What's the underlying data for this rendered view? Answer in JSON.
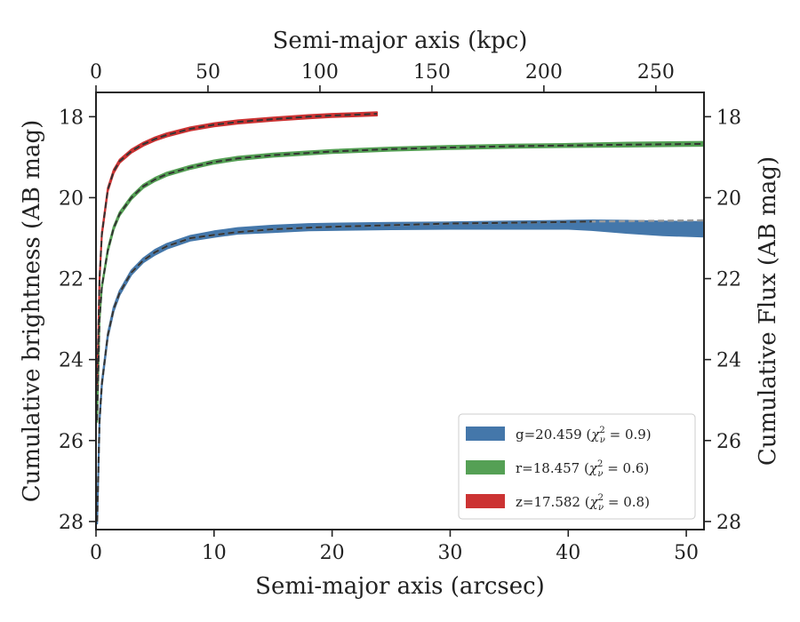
{
  "chart_data": {
    "type": "line",
    "xlabel": "Semi-major axis (arcsec)",
    "xlabel_top": "Semi-major axis (kpc)",
    "ylabel": "Cumulative brightness (AB mag)",
    "ylabel_right": "Cumulative Flux (AB mag)",
    "xlim": [
      0,
      51.5
    ],
    "xlim_top_kpc": [
      0,
      271.5
    ],
    "ylim": [
      28.2,
      17.4
    ],
    "x_ticks": [
      0,
      10,
      20,
      30,
      40,
      50
    ],
    "x_ticks_top": [
      0,
      50,
      100,
      150,
      200,
      250
    ],
    "y_ticks": [
      18,
      20,
      22,
      24,
      26,
      28
    ],
    "legend_position": "lower-right",
    "series": [
      {
        "name": "g=20.459 (χ²_ν = 0.9)",
        "label_main": "g=20.459 (",
        "label_sub": "ν",
        "label_tail": " = 0.9)",
        "color": "#4477aa",
        "x": [
          0.1,
          0.3,
          0.5,
          1,
          1.5,
          2,
          3,
          4,
          5,
          6,
          7,
          8,
          10,
          12,
          15,
          18,
          20,
          25,
          30,
          35,
          40,
          42,
          45,
          48,
          51.5
        ],
        "y": [
          28.0,
          25.5,
          24.6,
          23.4,
          22.75,
          22.35,
          21.85,
          21.55,
          21.35,
          21.2,
          21.1,
          21.0,
          20.9,
          20.82,
          20.77,
          20.73,
          20.72,
          20.7,
          20.69,
          20.68,
          20.67,
          20.68,
          20.72,
          20.76,
          20.78
        ],
        "band_halfwidth": [
          0.05,
          0.05,
          0.05,
          0.05,
          0.05,
          0.05,
          0.05,
          0.05,
          0.06,
          0.06,
          0.06,
          0.06,
          0.07,
          0.07,
          0.08,
          0.08,
          0.08,
          0.08,
          0.08,
          0.09,
          0.1,
          0.12,
          0.15,
          0.17,
          0.18
        ],
        "model_y": [
          28.0,
          25.5,
          24.6,
          23.4,
          22.75,
          22.35,
          21.85,
          21.55,
          21.35,
          21.2,
          21.1,
          21.0,
          20.92,
          20.85,
          20.78,
          20.74,
          20.72,
          20.68,
          20.64,
          20.62,
          20.6,
          20.59,
          20.58,
          20.57,
          20.56
        ]
      },
      {
        "name": "r=18.457 (χ²_ν = 0.6)",
        "label_main": "r=18.457 (",
        "label_sub": "ν",
        "label_tail": " = 0.6)",
        "color": "#55a055",
        "x": [
          0.1,
          0.3,
          0.5,
          1,
          1.5,
          2,
          3,
          4,
          5,
          6,
          8,
          10,
          12,
          15,
          20,
          25,
          30,
          35,
          40,
          45,
          51.5
        ],
        "y": [
          25.5,
          23.0,
          22.2,
          21.3,
          20.75,
          20.4,
          20.0,
          19.72,
          19.55,
          19.42,
          19.25,
          19.12,
          19.03,
          18.95,
          18.86,
          18.8,
          18.76,
          18.73,
          18.71,
          18.69,
          18.67
        ],
        "band_halfwidth": [
          0.04,
          0.04,
          0.04,
          0.04,
          0.04,
          0.04,
          0.04,
          0.04,
          0.04,
          0.04,
          0.04,
          0.04,
          0.04,
          0.04,
          0.04,
          0.04,
          0.04,
          0.04,
          0.04,
          0.05,
          0.05
        ],
        "model_y": [
          25.5,
          23.0,
          22.2,
          21.3,
          20.75,
          20.4,
          20.0,
          19.72,
          19.55,
          19.42,
          19.25,
          19.12,
          19.03,
          18.95,
          18.86,
          18.8,
          18.76,
          18.73,
          18.71,
          18.69,
          18.67
        ]
      },
      {
        "name": "z=17.582 (χ²_ν = 0.8)",
        "label_main": "z=17.582 (",
        "label_sub": "ν",
        "label_tail": " = 0.8)",
        "color": "#cc3333",
        "x": [
          0.1,
          0.3,
          0.5,
          1,
          1.5,
          2,
          3,
          4,
          5,
          6,
          8,
          10,
          12,
          15,
          18,
          20,
          22,
          23.8
        ],
        "y": [
          24.6,
          22.0,
          20.9,
          19.8,
          19.35,
          19.1,
          18.85,
          18.68,
          18.55,
          18.45,
          18.3,
          18.2,
          18.13,
          18.06,
          18.0,
          17.97,
          17.95,
          17.93
        ],
        "band_halfwidth": [
          0.04,
          0.04,
          0.04,
          0.04,
          0.04,
          0.04,
          0.04,
          0.04,
          0.04,
          0.04,
          0.04,
          0.04,
          0.04,
          0.04,
          0.04,
          0.04,
          0.04,
          0.04
        ],
        "model_y": [
          24.6,
          22.0,
          20.9,
          19.8,
          19.35,
          19.1,
          18.85,
          18.68,
          18.55,
          18.45,
          18.3,
          18.2,
          18.13,
          18.06,
          18.0,
          17.97,
          17.95,
          17.93
        ]
      }
    ],
    "model_line_color": "#333333",
    "model_extension_color": "#999999"
  }
}
